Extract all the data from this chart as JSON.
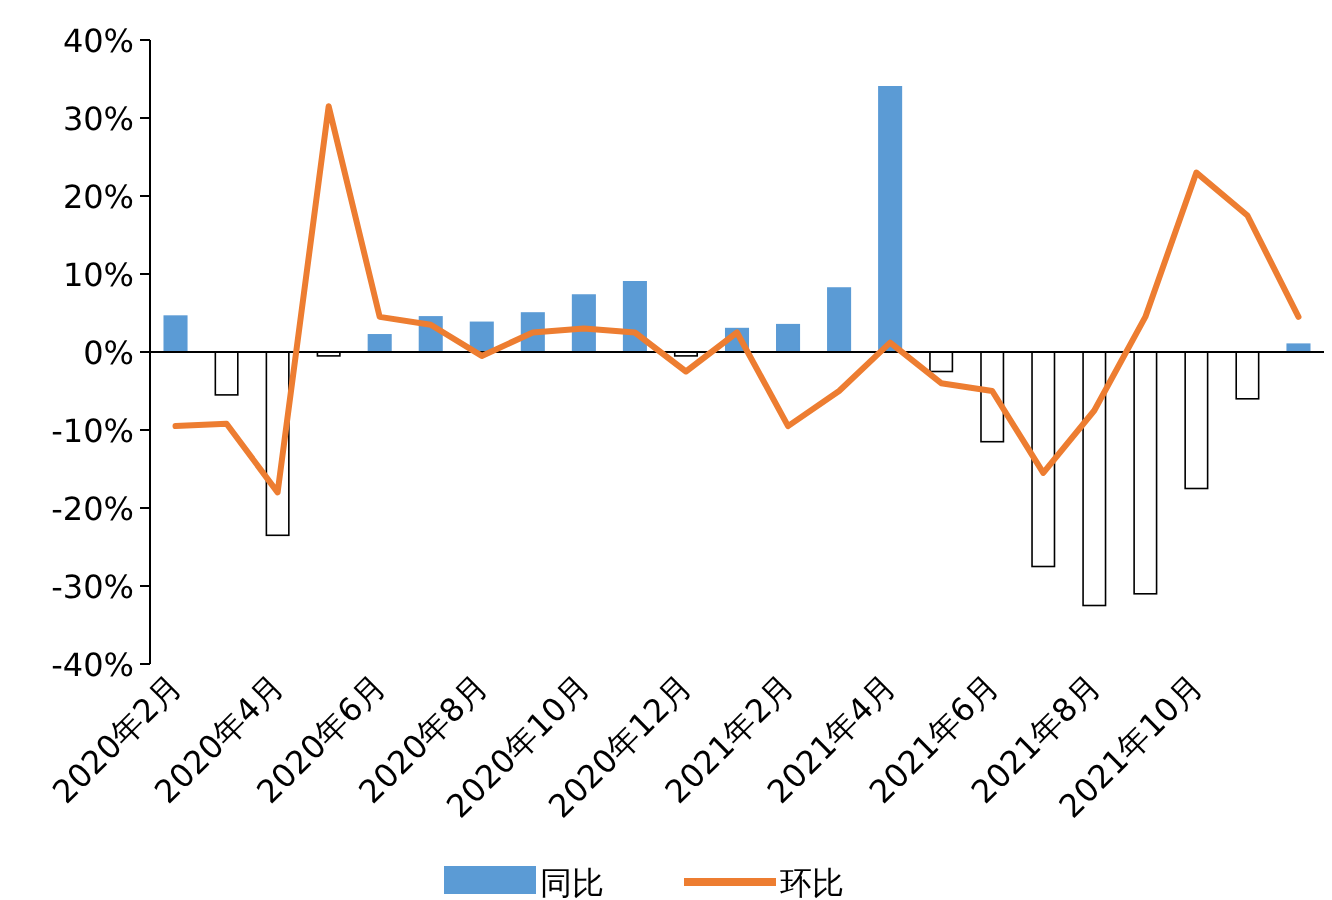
{
  "chart_data": {
    "type": "bar",
    "categories": [
      "2020年2月",
      null,
      "2020年4月",
      null,
      "2020年6月",
      null,
      "2020年8月",
      null,
      "2020年10月",
      null,
      "2020年12月",
      null,
      "2021年2月",
      null,
      "2021年4月",
      null,
      "2021年6月",
      null,
      "2021年8月",
      null,
      "2021年10月",
      null,
      null
    ],
    "series": [
      {
        "name": "同比",
        "color": "#5b9bd5",
        "colors": [
          "#5b9bd5",
          "#ffffff",
          "#ffffff",
          "#ffffff",
          "#5b9bd5",
          "#5b9bd5",
          "#5b9bd5",
          "#5b9bd5",
          "#5b9bd5",
          "#5b9bd5",
          "#ffffff",
          "#5b9bd5",
          "#5b9bd5",
          "#5b9bd5",
          "#5b9bd5",
          "#ffffff",
          "#ffffff",
          "#ffffff",
          "#ffffff",
          "#ffffff",
          "#ffffff",
          "#ffffff",
          "#5b9bd5"
        ],
        "values": [
          4.6,
          -5.5,
          -23.5,
          -0.5,
          2.2,
          4.5,
          3.8,
          5.0,
          7.3,
          9.0,
          -0.5,
          3.0,
          3.5,
          8.2,
          34.0,
          -2.5,
          -11.5,
          -27.5,
          -32.5,
          -31,
          -17.5,
          -6,
          1.0
        ]
      },
      {
        "name": "环比",
        "type": "line",
        "color": "#ed7d31",
        "values": [
          -9.5,
          -9.2,
          -18,
          31.5,
          4.5,
          3.5,
          -0.5,
          2.5,
          3,
          2.5,
          -2.5,
          2.5,
          -9.5,
          -5,
          1.2,
          -4,
          -5,
          -15.5,
          -7.5,
          4.5,
          23,
          17.5,
          4.5
        ]
      }
    ],
    "ylim": [
      -40,
      40
    ],
    "yticks": [
      {
        "value": -40,
        "label": "-40%"
      },
      {
        "value": -30,
        "label": "-30%"
      },
      {
        "value": -20,
        "label": "-20%"
      },
      {
        "value": -10,
        "label": "-10%"
      },
      {
        "value": 0,
        "label": "0%"
      },
      {
        "value": 10,
        "label": "10%"
      },
      {
        "value": 20,
        "label": "20%"
      },
      {
        "value": 30,
        "label": "30%"
      },
      {
        "value": 40,
        "label": "40%"
      }
    ],
    "legend": "bottom"
  }
}
